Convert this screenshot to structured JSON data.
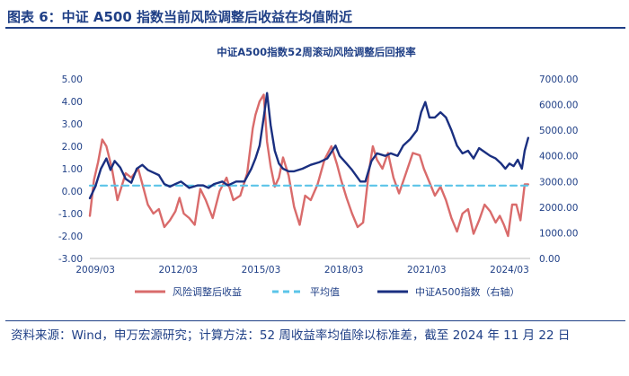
{
  "figure": {
    "title": "图表 6：中证 A500 指数当前风险调整后收益在均值附近",
    "source": "资料来源：Wind，申万宏源研究；计算方法：52 周收益率均值除以标准差，截至 2024 年 11 月 22 日"
  },
  "chart_data": {
    "type": "line",
    "title": "中证A500指数52周滚动风险调整后回报率",
    "x_range": [
      2009.0,
      2024.95
    ],
    "x_ticks": [
      {
        "label": "2009/03",
        "value": 2009.2
      },
      {
        "label": "2012/03",
        "value": 2012.2
      },
      {
        "label": "2015/03",
        "value": 2015.2
      },
      {
        "label": "2018/03",
        "value": 2018.2
      },
      {
        "label": "2021/03",
        "value": 2021.2
      },
      {
        "label": "2024/03",
        "value": 2024.2
      }
    ],
    "y_left": {
      "min": -3,
      "max": 5,
      "step": 1,
      "tick_labels": [
        "-3.00",
        "-2.00",
        "-1.00",
        "0.00",
        "1.00",
        "2.00",
        "3.00",
        "4.00",
        "5.00"
      ]
    },
    "y_right": {
      "min": 0,
      "max": 7000,
      "step": 1000,
      "tick_labels": [
        "0.00",
        "1000.00",
        "2000.00",
        "3000.00",
        "4000.00",
        "5000.00",
        "6000.00",
        "7000.00"
      ]
    },
    "legend": [
      {
        "name": "风险调整后收益",
        "color": "#d96b6b",
        "style": "solid"
      },
      {
        "name": "平均值",
        "color": "#5bc4e8",
        "style": "dashed"
      },
      {
        "name": "中证A500指数（右轴）",
        "color": "#1a2f80",
        "style": "solid"
      }
    ],
    "series": [
      {
        "name": "风险调整后收益",
        "axis": "left",
        "color": "#d96b6b",
        "x": [
          2009.0,
          2009.15,
          2009.3,
          2009.45,
          2009.6,
          2009.8,
          2010.0,
          2010.15,
          2010.3,
          2010.5,
          2010.75,
          2010.95,
          2011.1,
          2011.3,
          2011.5,
          2011.7,
          2011.9,
          2012.1,
          2012.25,
          2012.4,
          2012.6,
          2012.8,
          2013.0,
          2013.2,
          2013.45,
          2013.7,
          2013.95,
          2014.2,
          2014.45,
          2014.7,
          2014.9,
          2015.0,
          2015.15,
          2015.3,
          2015.42,
          2015.55,
          2015.7,
          2015.85,
          2016.0,
          2016.2,
          2016.4,
          2016.6,
          2016.8,
          2017.0,
          2017.25,
          2017.5,
          2017.75,
          2017.95,
          2018.1,
          2018.3,
          2018.5,
          2018.7,
          2018.9,
          2019.1,
          2019.25,
          2019.4,
          2019.6,
          2019.8,
          2020.0,
          2020.2,
          2020.45,
          2020.7,
          2020.95,
          2021.1,
          2021.3,
          2021.5,
          2021.7,
          2021.9,
          2022.1,
          2022.3,
          2022.5,
          2022.7,
          2022.9,
          2023.1,
          2023.3,
          2023.5,
          2023.7,
          2023.85,
          2024.0,
          2024.15,
          2024.3,
          2024.45,
          2024.6,
          2024.75,
          2024.88
        ],
        "y": [
          -1.1,
          0.5,
          1.3,
          2.3,
          2.0,
          1.0,
          -0.4,
          0.2,
          0.8,
          0.6,
          1.0,
          0.1,
          -0.6,
          -1.0,
          -0.8,
          -1.6,
          -1.3,
          -0.9,
          -0.3,
          -1.0,
          -1.2,
          -1.5,
          0.1,
          -0.4,
          -1.2,
          0.0,
          0.6,
          -0.4,
          -0.2,
          0.8,
          2.8,
          3.4,
          4.0,
          4.3,
          2.2,
          1.1,
          0.2,
          0.6,
          1.5,
          0.7,
          -0.7,
          -1.5,
          -0.2,
          -0.4,
          0.3,
          1.4,
          2.0,
          1.2,
          0.5,
          -0.3,
          -1.0,
          -1.6,
          -1.4,
          0.8,
          2.0,
          1.4,
          1.0,
          1.7,
          0.6,
          -0.1,
          0.8,
          1.7,
          1.6,
          1.0,
          0.4,
          -0.2,
          0.2,
          -0.4,
          -1.2,
          -1.8,
          -1.0,
          -0.8,
          -1.9,
          -1.3,
          -0.6,
          -0.9,
          -1.4,
          -1.1,
          -1.5,
          -2.0,
          -0.6,
          -0.6,
          -1.3,
          0.3,
          0.3
        ]
      },
      {
        "name": "平均值",
        "axis": "left",
        "color": "#5bc4e8",
        "x": [
          2009.0,
          2024.88
        ],
        "y": [
          0.25,
          0.25
        ]
      },
      {
        "name": "中证A500指数（右轴）",
        "axis": "right",
        "color": "#1a2f80",
        "x": [
          2009.0,
          2009.2,
          2009.4,
          2009.6,
          2009.75,
          2009.9,
          2010.1,
          2010.3,
          2010.5,
          2010.7,
          2010.9,
          2011.1,
          2011.3,
          2011.5,
          2011.7,
          2011.9,
          2012.1,
          2012.3,
          2012.6,
          2012.9,
          2013.1,
          2013.3,
          2013.5,
          2013.8,
          2014.0,
          2014.3,
          2014.6,
          2014.85,
          2015.0,
          2015.15,
          2015.3,
          2015.42,
          2015.55,
          2015.7,
          2015.85,
          2016.0,
          2016.2,
          2016.4,
          2016.7,
          2017.0,
          2017.3,
          2017.6,
          2017.9,
          2018.05,
          2018.3,
          2018.5,
          2018.8,
          2018.98,
          2019.2,
          2019.4,
          2019.7,
          2019.9,
          2020.15,
          2020.35,
          2020.6,
          2020.85,
          2021.0,
          2021.15,
          2021.3,
          2021.5,
          2021.7,
          2021.9,
          2022.1,
          2022.3,
          2022.5,
          2022.7,
          2022.9,
          2023.1,
          2023.3,
          2023.5,
          2023.7,
          2023.9,
          2024.05,
          2024.2,
          2024.35,
          2024.5,
          2024.65,
          2024.75,
          2024.88
        ],
        "y": [
          2350,
          2800,
          3500,
          3900,
          3450,
          3800,
          3550,
          3100,
          2950,
          3500,
          3650,
          3450,
          3350,
          3250,
          2900,
          2800,
          2900,
          3000,
          2750,
          2850,
          2850,
          2750,
          2900,
          3000,
          2850,
          3000,
          3000,
          3500,
          3900,
          4400,
          5500,
          6450,
          5200,
          4200,
          3700,
          3500,
          3400,
          3400,
          3500,
          3650,
          3750,
          3900,
          4400,
          4000,
          3700,
          3450,
          3000,
          3000,
          3800,
          4100,
          4000,
          4100,
          4000,
          4400,
          4650,
          5000,
          5700,
          6100,
          5500,
          5500,
          5700,
          5500,
          5000,
          4400,
          4100,
          4200,
          3900,
          4300,
          4150,
          4000,
          3900,
          3700,
          3500,
          3700,
          3600,
          3850,
          3500,
          4200,
          4700
        ]
      }
    ]
  }
}
